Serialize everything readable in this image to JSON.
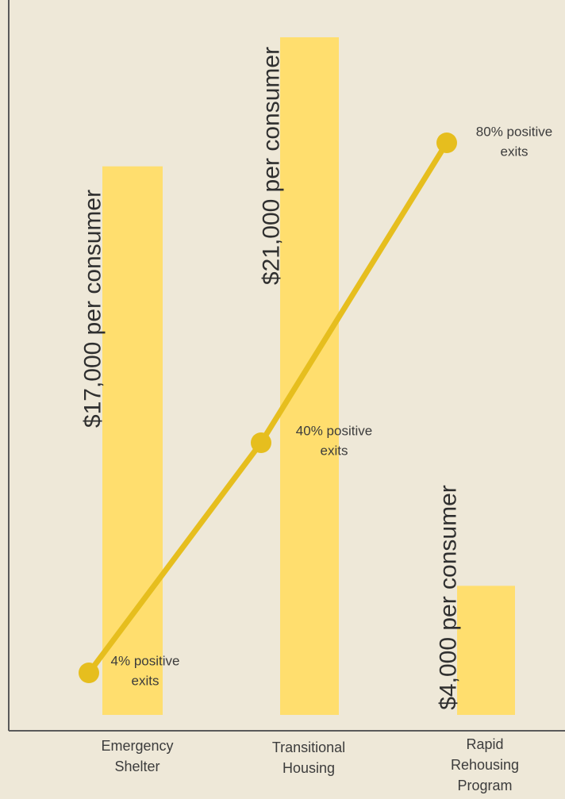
{
  "chart_data": {
    "type": "bar",
    "categories": [
      "Emergency Shelter",
      "Transitional Housing",
      "Rapid Rehousing Program"
    ],
    "category_label_lines": [
      [
        "Emergency",
        "Shelter"
      ],
      [
        "Transitional",
        "Housing"
      ],
      [
        "Rapid",
        "Rehousing",
        "Program"
      ]
    ],
    "series": [
      {
        "type": "bar",
        "values": [
          17000,
          21000,
          4000
        ],
        "data_labels": [
          "$17,000 per consumer",
          "$21,000 per consumer",
          "$4,000 per consumer"
        ],
        "color": "#FFDE6E"
      },
      {
        "type": "line",
        "values": [
          4,
          40,
          80
        ],
        "data_labels": [
          [
            "4% positive",
            "exits"
          ],
          [
            "40% positive",
            "exits"
          ],
          [
            "80% positive",
            "exits"
          ]
        ],
        "color": "#E6BE1E"
      }
    ],
    "title": "",
    "xlabel": "",
    "ylabel": "",
    "ylim_bars": [
      0,
      21900
    ],
    "ylim_line": [
      0,
      100
    ],
    "grid": false,
    "legend": "none",
    "colors": {
      "background": "#EEE8D8",
      "axis": "#5A5A5A",
      "text": "#3C3C3C",
      "label_text": "#2F2F2F"
    }
  }
}
